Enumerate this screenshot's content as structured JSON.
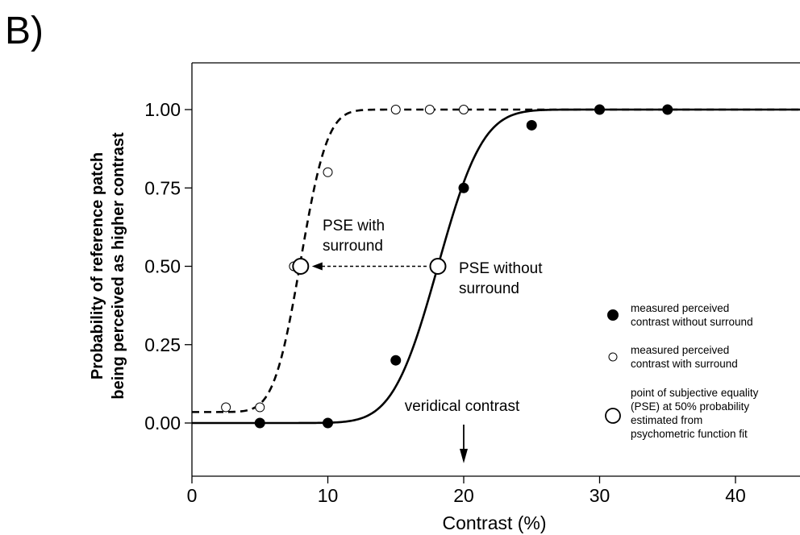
{
  "panel_label": "B)",
  "chart_data": {
    "type": "scatter",
    "xlabel": "Contrast (%)",
    "ylabel_lines": [
      "Probability of reference patch",
      "being perceived as higher contrast"
    ],
    "xlim": [
      0,
      45
    ],
    "ylim": [
      -0.15,
      1.15
    ],
    "x_ticks": [
      0,
      10,
      20,
      30,
      40
    ],
    "x_tick_labels": [
      "0",
      "10",
      "20",
      "30",
      "40"
    ],
    "y_ticks": [
      0,
      0.25,
      0.5,
      0.75,
      1
    ],
    "y_tick_labels": [
      "0.00",
      "0.25",
      "0.50",
      "0.75",
      "1.00"
    ],
    "grid": false,
    "legend_position": "right",
    "series": [
      {
        "name": "measured perceived contrast without surround",
        "marker": "filled-circle",
        "points": [
          {
            "x": 5,
            "y": 0.0
          },
          {
            "x": 10,
            "y": 0.0
          },
          {
            "x": 15,
            "y": 0.2
          },
          {
            "x": 20,
            "y": 0.75
          },
          {
            "x": 25,
            "y": 0.95
          },
          {
            "x": 30,
            "y": 1.0
          },
          {
            "x": 35,
            "y": 1.0
          }
        ],
        "fit": {
          "style": "solid",
          "mean": 18.1,
          "sd": 2.6,
          "floor": 0.0
        }
      },
      {
        "name": "measured perceived contrast with surround",
        "marker": "open-circle",
        "points": [
          {
            "x": 2.5,
            "y": 0.05
          },
          {
            "x": 5,
            "y": 0.05
          },
          {
            "x": 7.5,
            "y": 0.5
          },
          {
            "x": 10,
            "y": 0.8
          },
          {
            "x": 15,
            "y": 1.0
          },
          {
            "x": 17.5,
            "y": 1.0
          },
          {
            "x": 20,
            "y": 1.0
          }
        ],
        "fit": {
          "style": "dashed",
          "mean": 8.0,
          "sd": 1.55,
          "floor": 0.035
        }
      }
    ],
    "pse_points": [
      {
        "x": 8.0,
        "y": 0.5
      },
      {
        "x": 18.1,
        "y": 0.5
      }
    ],
    "annotations": {
      "pse_with_surround": [
        "PSE with",
        "surround"
      ],
      "pse_without_surround": [
        "PSE without",
        "surround"
      ],
      "veridical_contrast": "veridical contrast",
      "veridical_x": 20
    },
    "legend": [
      {
        "marker": "filled-circle",
        "lines": [
          "measured perceived",
          "contrast without surround"
        ]
      },
      {
        "marker": "open-circle",
        "lines": [
          "measured perceived",
          "contrast with surround"
        ]
      },
      {
        "marker": "open-circle-large",
        "lines": [
          "point of subjective equality",
          "(PSE) at 50% probability",
          "estimated from",
          "psychometric function fit"
        ]
      }
    ]
  }
}
